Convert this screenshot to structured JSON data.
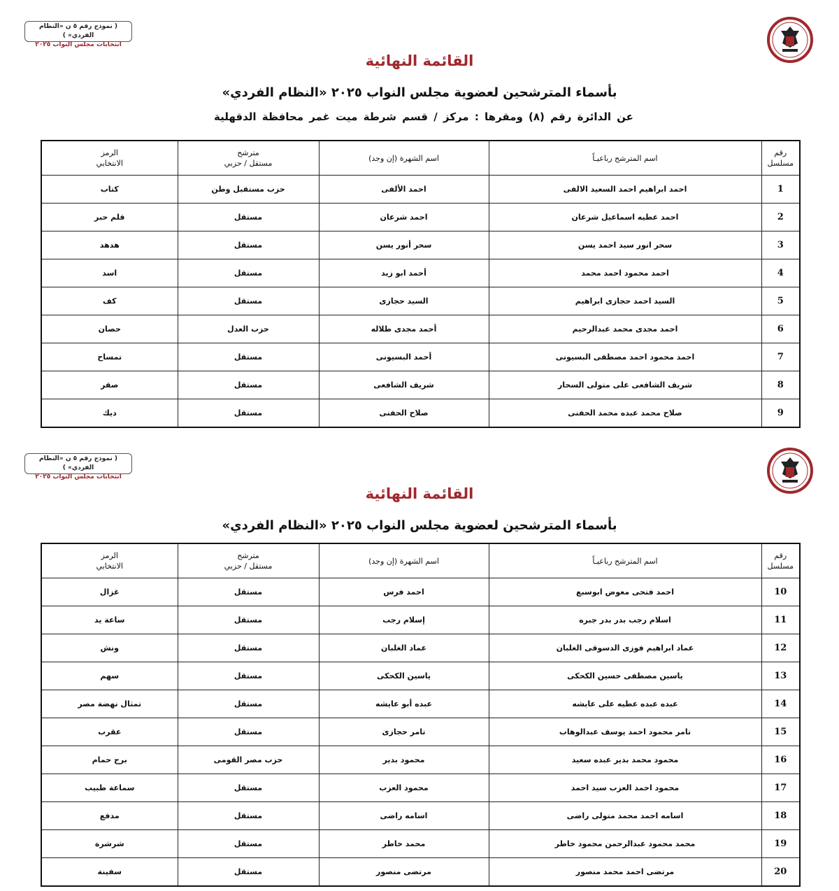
{
  "form_box": {
    "line1": "( نموذج رقم ٥ ن «النظام الفردي» )",
    "line2": "انتخابات مجلس النواب ٢٠٢٥"
  },
  "logo": {
    "text": "National Election Authority",
    "color": "#a0282d"
  },
  "title": "القائمة النهائية",
  "subtitle": "بأسماء المترشحين لعضوية مجلس النواب ٢٠٢٥ «النظام الفردي»",
  "district_line": "عن الدائرة رقم (٨)   ومقرها : مركز / قسم شرطة  ميت غمر   محافظة  الدقهلية",
  "columns": {
    "serial": [
      "رقم",
      "مسلسل"
    ],
    "full_name": "اسم المترشح رباعيـاً",
    "nickname": "اسم الشهرة (إن وجد)",
    "type": [
      "مترشح",
      "مستقل / حزبي"
    ],
    "symbol": [
      "الرمز",
      "الانتخابي"
    ]
  },
  "colors": {
    "title": "#a0282d"
  },
  "table1": [
    {
      "n": "1",
      "name": "احمد ابراهيم احمد السعيد الالفى",
      "nick": "احمد الألفى",
      "type": "حزب مستقبل وطن",
      "symbol": "كتاب"
    },
    {
      "n": "2",
      "name": "احمد عطيه اسماعيل شرعان",
      "nick": "احمد شرعان",
      "type": "مستقل",
      "symbol": "قلم حبر"
    },
    {
      "n": "3",
      "name": "سحر انور سيد احمد يسن",
      "nick": "سحر أنور يسن",
      "type": "مستقل",
      "symbol": "هدهد"
    },
    {
      "n": "4",
      "name": "احمد محمود احمد محمد",
      "nick": "أحمد ابو زيد",
      "type": "مستقل",
      "symbol": "اسد"
    },
    {
      "n": "5",
      "name": "السيد احمد حجازى ابراهيم",
      "nick": "السيد حجازى",
      "type": "مستقل",
      "symbol": "كف"
    },
    {
      "n": "6",
      "name": "احمد مجدى محمد عبدالرحيم",
      "nick": "أحمد مجدى طلاله",
      "type": "حزب العدل",
      "symbol": "حصان"
    },
    {
      "n": "7",
      "name": "احمد محمود احمد مصطفى البسيونى",
      "nick": "أحمد البسيونى",
      "type": "مستقل",
      "symbol": "تمساح"
    },
    {
      "n": "8",
      "name": "شريف الشافعى على متولى السحار",
      "nick": "شريف الشافعى",
      "type": "مستقل",
      "symbol": "صقر"
    },
    {
      "n": "9",
      "name": "صلاح محمد عبده محمد الحفنى",
      "nick": "صلاح الحفنى",
      "type": "مستقل",
      "symbol": "ديك"
    }
  ],
  "table2": [
    {
      "n": "10",
      "name": "احمد فتحى معوض ابوسبع",
      "nick": "احمد فرس",
      "type": "مستقل",
      "symbol": "غزال"
    },
    {
      "n": "11",
      "name": "اسلام رجب بدر بدر جبره",
      "nick": "إسلام رجب",
      "type": "مستقل",
      "symbol": "ساعة يد"
    },
    {
      "n": "12",
      "name": "عماد ابراهيم فوزى الدسوقى الغلبان",
      "nick": "عماد الغلبان",
      "type": "مستقل",
      "symbol": "ونش"
    },
    {
      "n": "13",
      "name": "ياسين مصطفى حسين الكحكى",
      "nick": "ياسين الكحكى",
      "type": "مستقل",
      "symbol": "سهم"
    },
    {
      "n": "14",
      "name": "عبده عبده عطيه على عايشه",
      "nick": "عبده أبو عايشه",
      "type": "مستقل",
      "symbol": "تمثال نهضة مصر"
    },
    {
      "n": "15",
      "name": "تامر محمود احمد يوسف عبدالوهاب",
      "nick": "تامر حجازى",
      "type": "مستقل",
      "symbol": "عقرب"
    },
    {
      "n": "16",
      "name": "محمود محمد بدير عبده سعيد",
      "nick": "محمود بدير",
      "type": "حزب مصر القومى",
      "symbol": "برج حمام"
    },
    {
      "n": "17",
      "name": "محمود احمد العزب سيد احمد",
      "nick": "محمود العزب",
      "type": "مستقل",
      "symbol": "سماعة طبيب"
    },
    {
      "n": "18",
      "name": "اسامه احمد محمد متولى راضى",
      "nick": "اسامه راضى",
      "type": "مستقل",
      "symbol": "مدفع"
    },
    {
      "n": "19",
      "name": "محمد محمود عبدالرحمن محمود خاطر",
      "nick": "محمد خاطر",
      "type": "مستقل",
      "symbol": "شرشرة"
    },
    {
      "n": "20",
      "name": "مرتضى احمد محمد منصور",
      "nick": "مرتضى منصور",
      "type": "مستقل",
      "symbol": "سفينة"
    }
  ]
}
